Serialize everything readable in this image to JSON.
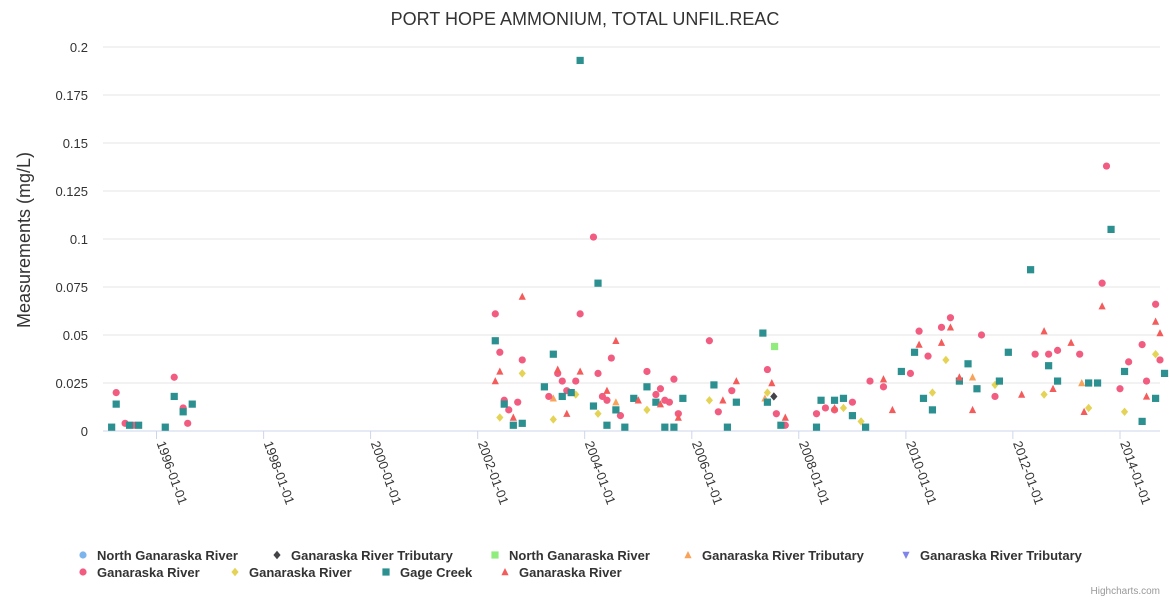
{
  "chart_data": {
    "type": "scatter",
    "title": "PORT HOPE AMMONIUM, TOTAL UNFIL.REAC",
    "ylabel": "Measurements (mg/L)",
    "xlabel": "",
    "x_range": [
      "1995-01-01",
      "2014-10-01"
    ],
    "ylim": [
      0,
      0.2
    ],
    "y_ticks": [
      "0",
      "0.025",
      "0.05",
      "0.075",
      "0.1",
      "0.125",
      "0.15",
      "0.175",
      "0.2"
    ],
    "x_ticks": [
      "1996-01-01",
      "1998-01-01",
      "2000-01-01",
      "2002-01-01",
      "2004-01-01",
      "2006-01-01",
      "2008-01-01",
      "2010-01-01",
      "2012-01-01",
      "2014-01-01"
    ],
    "grid": true,
    "legend_position": "bottom",
    "series": [
      {
        "name": "North Ganaraska River",
        "marker": "circle",
        "color": "#7cb5ec",
        "points": []
      },
      {
        "name": "Ganaraska River Tributary",
        "marker": "diamond",
        "color": "#434348",
        "points": [
          [
            "2007-07-15",
            0.018
          ]
        ]
      },
      {
        "name": "North Ganaraska River",
        "marker": "square",
        "color": "#90ed7d",
        "points": [
          [
            "2007-07-20",
            0.044
          ]
        ]
      },
      {
        "name": "Ganaraska River Tributary",
        "marker": "triangle",
        "color": "#f7a35c",
        "points": [
          [
            "2003-06-01",
            0.017
          ],
          [
            "2004-08-01",
            0.015
          ],
          [
            "2007-05-15",
            0.017
          ],
          [
            "2011-04-01",
            0.028
          ],
          [
            "2013-04-15",
            0.025
          ]
        ]
      },
      {
        "name": "Ganaraska River Tributary",
        "marker": "triangle-down",
        "color": "#8085e9",
        "points": []
      },
      {
        "name": "Ganaraska River",
        "marker": "circle",
        "color": "#f15c80",
        "points": [
          [
            "1995-04-01",
            0.02
          ],
          [
            "1995-06-01",
            0.004
          ],
          [
            "1995-08-01",
            0.003
          ],
          [
            "1996-05-01",
            0.028
          ],
          [
            "1996-07-01",
            0.012
          ],
          [
            "1996-08-01",
            0.004
          ],
          [
            "2002-05-01",
            0.061
          ],
          [
            "2002-06-01",
            0.041
          ],
          [
            "2002-07-01",
            0.016
          ],
          [
            "2002-08-01",
            0.011
          ],
          [
            "2002-10-01",
            0.015
          ],
          [
            "2002-11-01",
            0.037
          ],
          [
            "2003-05-01",
            0.018
          ],
          [
            "2003-07-01",
            0.03
          ],
          [
            "2003-08-01",
            0.026
          ],
          [
            "2003-09-01",
            0.021
          ],
          [
            "2003-11-01",
            0.026
          ],
          [
            "2003-12-01",
            0.061
          ],
          [
            "2004-03-01",
            0.101
          ],
          [
            "2004-04-01",
            0.03
          ],
          [
            "2004-05-01",
            0.018
          ],
          [
            "2004-06-01",
            0.016
          ],
          [
            "2004-07-01",
            0.038
          ],
          [
            "2004-09-01",
            0.008
          ],
          [
            "2005-03-01",
            0.031
          ],
          [
            "2005-05-01",
            0.019
          ],
          [
            "2005-06-01",
            0.022
          ],
          [
            "2005-07-01",
            0.016
          ],
          [
            "2005-08-01",
            0.015
          ],
          [
            "2005-09-01",
            0.027
          ],
          [
            "2005-10-01",
            0.009
          ],
          [
            "2006-05-01",
            0.047
          ],
          [
            "2006-07-01",
            0.01
          ],
          [
            "2006-10-01",
            0.021
          ],
          [
            "2007-06-01",
            0.032
          ],
          [
            "2007-08-01",
            0.009
          ],
          [
            "2007-10-01",
            0.003
          ],
          [
            "2008-05-01",
            0.009
          ],
          [
            "2008-07-01",
            0.012
          ],
          [
            "2008-09-01",
            0.011
          ],
          [
            "2009-01-01",
            0.015
          ],
          [
            "2009-05-01",
            0.026
          ],
          [
            "2009-08-01",
            0.023
          ],
          [
            "2010-02-01",
            0.03
          ],
          [
            "2010-04-01",
            0.052
          ],
          [
            "2010-06-01",
            0.039
          ],
          [
            "2010-09-01",
            0.054
          ],
          [
            "2010-11-01",
            0.059
          ],
          [
            "2011-06-01",
            0.05
          ],
          [
            "2011-09-01",
            0.018
          ],
          [
            "2012-06-01",
            0.04
          ],
          [
            "2012-09-01",
            0.04
          ],
          [
            "2012-11-01",
            0.042
          ],
          [
            "2013-04-01",
            0.04
          ],
          [
            "2013-09-01",
            0.077
          ],
          [
            "2013-10-01",
            0.138
          ],
          [
            "2014-01-01",
            0.022
          ],
          [
            "2014-03-01",
            0.036
          ],
          [
            "2014-06-01",
            0.045
          ],
          [
            "2014-07-01",
            0.026
          ],
          [
            "2014-09-01",
            0.066
          ],
          [
            "2014-10-01",
            0.037
          ]
        ]
      },
      {
        "name": "Ganaraska River",
        "marker": "diamond",
        "color": "#e4d354",
        "points": [
          [
            "2002-06-01",
            0.007
          ],
          [
            "2002-11-01",
            0.03
          ],
          [
            "2003-06-01",
            0.006
          ],
          [
            "2003-11-01",
            0.019
          ],
          [
            "2004-04-01",
            0.009
          ],
          [
            "2005-03-01",
            0.011
          ],
          [
            "2006-05-01",
            0.016
          ],
          [
            "2007-06-01",
            0.02
          ],
          [
            "2008-11-01",
            0.012
          ],
          [
            "2009-03-01",
            0.005
          ],
          [
            "2010-07-01",
            0.02
          ],
          [
            "2010-10-01",
            0.037
          ],
          [
            "2011-09-01",
            0.024
          ],
          [
            "2012-08-01",
            0.019
          ],
          [
            "2013-06-01",
            0.012
          ],
          [
            "2014-02-01",
            0.01
          ],
          [
            "2014-09-01",
            0.04
          ]
        ]
      },
      {
        "name": "Gage Creek",
        "marker": "square",
        "color": "#2b908f",
        "points": [
          [
            "1995-03-01",
            0.002
          ],
          [
            "1995-04-01",
            0.014
          ],
          [
            "1995-07-01",
            0.003
          ],
          [
            "1995-09-01",
            0.003
          ],
          [
            "1996-03-01",
            0.002
          ],
          [
            "1996-05-01",
            0.018
          ],
          [
            "1996-07-01",
            0.01
          ],
          [
            "1996-09-01",
            0.014
          ],
          [
            "2002-05-01",
            0.047
          ],
          [
            "2002-07-01",
            0.014
          ],
          [
            "2002-09-01",
            0.003
          ],
          [
            "2002-11-01",
            0.004
          ],
          [
            "2003-04-01",
            0.023
          ],
          [
            "2003-06-01",
            0.04
          ],
          [
            "2003-08-01",
            0.018
          ],
          [
            "2003-10-01",
            0.02
          ],
          [
            "2003-12-01",
            0.193
          ],
          [
            "2004-03-01",
            0.013
          ],
          [
            "2004-04-01",
            0.077
          ],
          [
            "2004-06-01",
            0.003
          ],
          [
            "2004-08-01",
            0.011
          ],
          [
            "2004-10-01",
            0.002
          ],
          [
            "2004-12-01",
            0.017
          ],
          [
            "2005-03-01",
            0.023
          ],
          [
            "2005-05-01",
            0.015
          ],
          [
            "2005-07-01",
            0.002
          ],
          [
            "2005-09-01",
            0.002
          ],
          [
            "2005-11-01",
            0.017
          ],
          [
            "2006-06-01",
            0.024
          ],
          [
            "2006-09-01",
            0.002
          ],
          [
            "2006-11-01",
            0.015
          ],
          [
            "2007-05-01",
            0.051
          ],
          [
            "2007-06-01",
            0.015
          ],
          [
            "2007-09-01",
            0.003
          ],
          [
            "2008-05-01",
            0.002
          ],
          [
            "2008-06-01",
            0.016
          ],
          [
            "2008-09-01",
            0.016
          ],
          [
            "2008-11-01",
            0.017
          ],
          [
            "2009-01-01",
            0.008
          ],
          [
            "2009-04-01",
            0.002
          ],
          [
            "2009-12-01",
            0.031
          ],
          [
            "2010-03-01",
            0.041
          ],
          [
            "2010-05-01",
            0.017
          ],
          [
            "2010-07-01",
            0.011
          ],
          [
            "2011-01-01",
            0.026
          ],
          [
            "2011-03-01",
            0.035
          ],
          [
            "2011-05-01",
            0.022
          ],
          [
            "2011-10-01",
            0.026
          ],
          [
            "2011-12-01",
            0.041
          ],
          [
            "2012-05-01",
            0.084
          ],
          [
            "2012-09-01",
            0.034
          ],
          [
            "2012-11-01",
            0.026
          ],
          [
            "2013-06-01",
            0.025
          ],
          [
            "2013-08-01",
            0.025
          ],
          [
            "2013-11-01",
            0.105
          ],
          [
            "2014-02-01",
            0.031
          ],
          [
            "2014-06-01",
            0.005
          ],
          [
            "2014-09-01",
            0.017
          ],
          [
            "2014-11-01",
            0.03
          ]
        ]
      },
      {
        "name": "Ganaraska River",
        "marker": "triangle",
        "color": "#f45b5b",
        "points": [
          [
            "2002-05-01",
            0.026
          ],
          [
            "2002-06-01",
            0.031
          ],
          [
            "2002-09-01",
            0.007
          ],
          [
            "2002-11-01",
            0.07
          ],
          [
            "2003-07-01",
            0.032
          ],
          [
            "2003-09-01",
            0.009
          ],
          [
            "2003-12-01",
            0.031
          ],
          [
            "2004-06-01",
            0.021
          ],
          [
            "2004-08-01",
            0.047
          ],
          [
            "2005-01-01",
            0.016
          ],
          [
            "2005-06-01",
            0.014
          ],
          [
            "2005-10-01",
            0.007
          ],
          [
            "2006-08-01",
            0.016
          ],
          [
            "2006-11-01",
            0.026
          ],
          [
            "2007-07-01",
            0.025
          ],
          [
            "2007-10-01",
            0.007
          ],
          [
            "2008-09-01",
            0.012
          ],
          [
            "2009-08-01",
            0.027
          ],
          [
            "2009-10-01",
            0.011
          ],
          [
            "2010-04-01",
            0.045
          ],
          [
            "2010-09-01",
            0.046
          ],
          [
            "2010-11-01",
            0.054
          ],
          [
            "2011-01-01",
            0.028
          ],
          [
            "2011-04-01",
            0.011
          ],
          [
            "2012-03-01",
            0.019
          ],
          [
            "2012-08-01",
            0.052
          ],
          [
            "2012-10-01",
            0.022
          ],
          [
            "2013-02-01",
            0.046
          ],
          [
            "2013-05-01",
            0.01
          ],
          [
            "2013-09-01",
            0.065
          ],
          [
            "2014-07-01",
            0.018
          ],
          [
            "2014-09-01",
            0.057
          ],
          [
            "2014-10-01",
            0.051
          ]
        ]
      }
    ],
    "credits": "Highcharts.com"
  }
}
